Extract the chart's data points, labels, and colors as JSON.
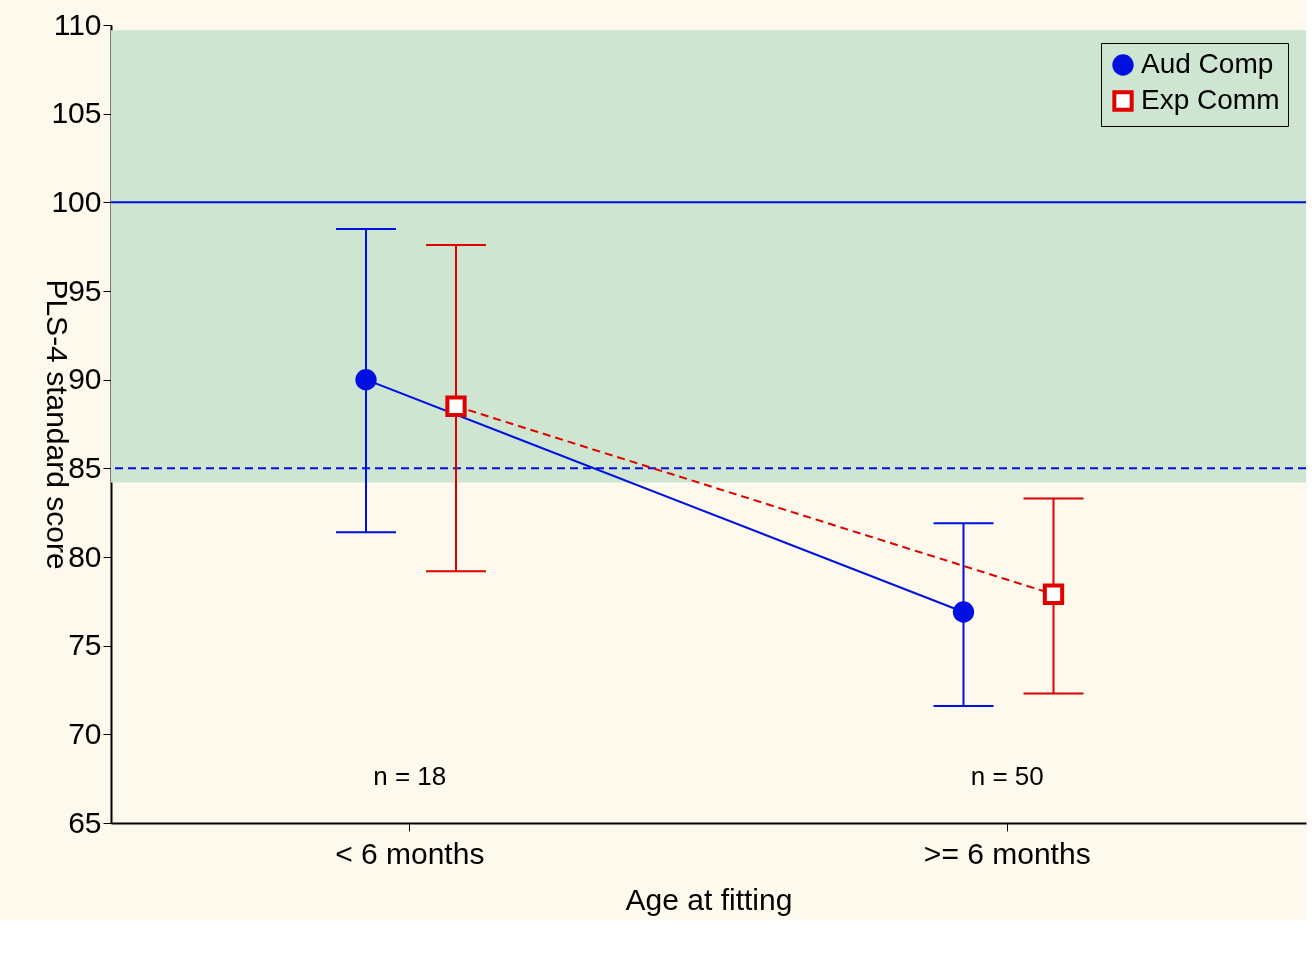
{
  "chart_data": {
    "type": "line",
    "xlabel": "Age at fitting",
    "ylabel": "PLS-4 standard score",
    "categories": [
      "< 6 months",
      ">= 6 months"
    ],
    "series": [
      {
        "name": "Aud Comp",
        "color": "#0010e0",
        "values": [
          90,
          76.9
        ],
        "errors": [
          [
            81.4,
            98.5
          ],
          [
            71.6,
            81.9
          ]
        ],
        "marker": "circle",
        "line_style": "solid"
      },
      {
        "name": "Exp Comm",
        "color": "#e00000",
        "values": [
          88.5,
          77.9
        ],
        "errors": [
          [
            79.2,
            97.6
          ],
          [
            72.3,
            83.3
          ]
        ],
        "marker": "square",
        "line_style": "dashed"
      }
    ],
    "ylim": [
      65,
      110
    ],
    "yticks": [
      65,
      70,
      75,
      80,
      85,
      90,
      95,
      100,
      105,
      110
    ],
    "ref_lines": [
      {
        "axis": "y",
        "value": 100,
        "color": "#0010e0",
        "line_style": "solid"
      },
      {
        "axis": "y",
        "value": 85,
        "color": "#0010e0",
        "line_style": "dashed"
      }
    ],
    "bands": [
      {
        "axis": "y",
        "from": 84.2,
        "to": 109.7,
        "color": "#cde5d1"
      }
    ],
    "annotations": [
      "n = 18",
      "n = 50"
    ],
    "legend": "top right",
    "grid": false
  }
}
